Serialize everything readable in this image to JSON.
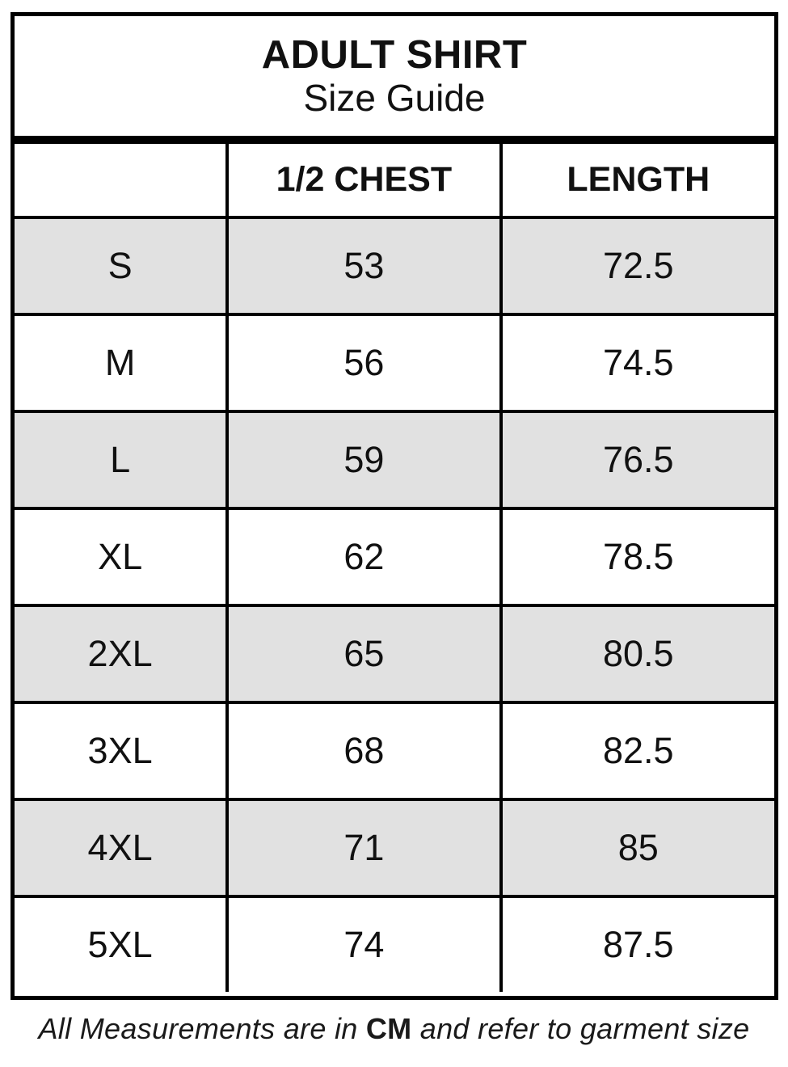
{
  "title": {
    "line1": "ADULT SHIRT",
    "line2": "Size Guide"
  },
  "table": {
    "columns": {
      "size": "",
      "chest": "1/2 CHEST",
      "length": "LENGTH"
    },
    "rows": [
      {
        "size": "S",
        "chest": "53",
        "length": "72.5"
      },
      {
        "size": "M",
        "chest": "56",
        "length": "74.5"
      },
      {
        "size": "L",
        "chest": "59",
        "length": "76.5"
      },
      {
        "size": "XL",
        "chest": "62",
        "length": "78.5"
      },
      {
        "size": "2XL",
        "chest": "65",
        "length": "80.5"
      },
      {
        "size": "3XL",
        "chest": "68",
        "length": "82.5"
      },
      {
        "size": "4XL",
        "chest": "71",
        "length": "85"
      },
      {
        "size": "5XL",
        "chest": "74",
        "length": "87.5"
      }
    ]
  },
  "footer": {
    "prefix": "All Measurements are in ",
    "unit": "CM",
    "suffix": " and refer to garment size"
  },
  "colors": {
    "background": "#ffffff",
    "border": "#000000",
    "stripe": "#e1e1e1",
    "text": "#111111"
  }
}
